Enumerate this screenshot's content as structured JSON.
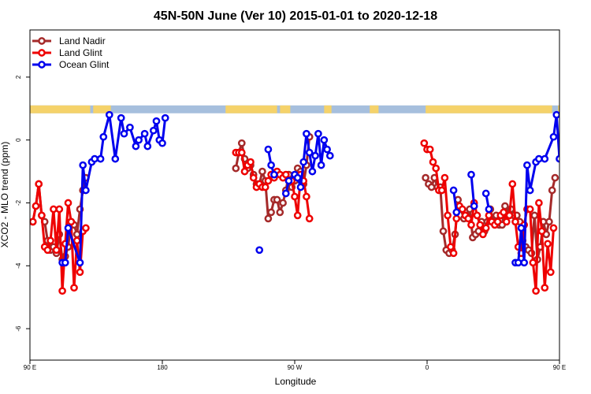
{
  "chart_data": {
    "type": "line",
    "title": "45N-50N June (Ver 10)   2015-01-01 to 2020-12-18",
    "xlabel": "Longitude",
    "ylabel": "XCO2 - MLO trend (ppm)",
    "xlim": [
      90,
      450
    ],
    "ylim": [
      -7,
      3.5
    ],
    "x_ticks": [
      {
        "value": 90,
        "label": "90 E"
      },
      {
        "value": 180,
        "label": "180"
      },
      {
        "value": 270,
        "label": "90 W"
      },
      {
        "value": 360,
        "label": "0"
      },
      {
        "value": 450,
        "label": "90 E"
      },
      {
        "value": 540,
        "label": "180"
      }
    ],
    "y_ticks": [
      {
        "value": 2,
        "label": "2"
      },
      {
        "value": 0,
        "label": "0"
      },
      {
        "value": -2,
        "label": "-2"
      },
      {
        "value": -4,
        "label": "-4"
      },
      {
        "value": -6,
        "label": "-6"
      }
    ],
    "grid": false,
    "legend": {
      "placement": "top-left"
    },
    "land_strip": {
      "y_range": [
        0.85,
        1.1
      ],
      "land_color": "#f5d26a",
      "ocean_color": "#a6bfdd",
      "land_segments": [
        [
          90,
          131
        ],
        [
          133,
          145
        ],
        [
          223,
          258
        ],
        [
          260,
          267
        ],
        [
          290,
          295
        ],
        [
          321,
          327
        ],
        [
          359,
          445
        ],
        [
          449,
          470
        ],
        [
          472,
          475
        ],
        [
          485,
          522
        ]
      ]
    },
    "series": [
      {
        "name": "Land Nadir",
        "color": "#a52a2a",
        "segments": [
          [
            [
              92,
              -2.6
            ],
            [
              94,
              -2.1
            ],
            [
              96,
              -1.4
            ],
            [
              98,
              -2.4
            ],
            [
              100,
              -2.6
            ],
            [
              102,
              -3.2
            ],
            [
              104,
              -3.5
            ],
            [
              106,
              -3.4
            ],
            [
              108,
              -3.6
            ],
            [
              110,
              -3.0
            ],
            [
              112,
              -3.8
            ],
            [
              114,
              -3.7
            ],
            [
              116,
              -3.4
            ],
            [
              118,
              -2.6
            ],
            [
              120,
              -2.7
            ],
            [
              122,
              -3.0
            ],
            [
              124,
              -2.2
            ],
            [
              126,
              -1.6
            ],
            [
              128,
              -1.2
            ]
          ],
          [
            [
              230,
              -0.9
            ],
            [
              232,
              -0.4
            ],
            [
              234,
              -0.1
            ],
            [
              236,
              -0.6
            ],
            [
              238,
              -0.9
            ],
            [
              240,
              -0.8
            ],
            [
              242,
              -1.1
            ],
            [
              244,
              -1.4
            ],
            [
              246,
              -1.4
            ],
            [
              248,
              -1.0
            ],
            [
              250,
              -1.3
            ],
            [
              252,
              -2.5
            ],
            [
              254,
              -2.3
            ],
            [
              256,
              -1.9
            ],
            [
              258,
              -1.9
            ],
            [
              260,
              -2.3
            ],
            [
              262,
              -2.0
            ],
            [
              264,
              -1.6
            ],
            [
              266,
              -1.1
            ],
            [
              268,
              -1.5
            ],
            [
              270,
              -1.3
            ],
            [
              272,
              -0.9
            ],
            [
              274,
              -1.0
            ],
            [
              276,
              -1.4
            ],
            [
              278,
              -0.8
            ],
            [
              280,
              0.1
            ]
          ],
          [
            [
              359,
              -1.2
            ],
            [
              361,
              -1.4
            ],
            [
              363,
              -1.5
            ],
            [
              365,
              -1.2
            ],
            [
              367,
              -1.5
            ],
            [
              369,
              -1.5
            ],
            [
              371,
              -2.9
            ],
            [
              373,
              -3.5
            ],
            [
              375,
              -3.6
            ],
            [
              377,
              -3.5
            ],
            [
              379,
              -3.0
            ],
            [
              381,
              -1.9
            ],
            [
              383,
              -2.2
            ],
            [
              385,
              -2.5
            ],
            [
              387,
              -2.4
            ],
            [
              389,
              -2.2
            ],
            [
              391,
              -3.1
            ],
            [
              393,
              -3.0
            ],
            [
              395,
              -2.9
            ],
            [
              397,
              -2.6
            ],
            [
              399,
              -2.9
            ],
            [
              401,
              -2.6
            ],
            [
              403,
              -2.2
            ],
            [
              405,
              -2.6
            ],
            [
              407,
              -2.4
            ],
            [
              409,
              -2.7
            ],
            [
              411,
              -2.7
            ],
            [
              413,
              -2.1
            ],
            [
              415,
              -2.4
            ],
            [
              417,
              -2.2
            ],
            [
              419,
              -2.4
            ],
            [
              421,
              -2.4
            ],
            [
              423,
              -2.6
            ],
            [
              425,
              -3.2
            ],
            [
              427,
              -3.4
            ],
            [
              429,
              -3.5
            ],
            [
              431,
              -3.6
            ],
            [
              433,
              -2.4
            ],
            [
              435,
              -3.8
            ],
            [
              437,
              -3.4
            ],
            [
              439,
              -2.6
            ],
            [
              441,
              -3.0
            ],
            [
              443,
              -2.6
            ],
            [
              445,
              -1.6
            ],
            [
              447,
              -1.2
            ]
          ]
        ]
      },
      {
        "name": "Land Glint",
        "color": "#ee0000",
        "segments": [
          [
            [
              92,
              -2.6
            ],
            [
              94,
              -2.1
            ],
            [
              96,
              -1.4
            ],
            [
              98,
              -2.4
            ],
            [
              100,
              -3.4
            ],
            [
              102,
              -3.5
            ],
            [
              104,
              -3.2
            ],
            [
              106,
              -2.2
            ],
            [
              108,
              -3.5
            ],
            [
              110,
              -2.2
            ],
            [
              112,
              -4.8
            ],
            [
              114,
              -3.3
            ],
            [
              116,
              -2.0
            ],
            [
              118,
              -2.6
            ],
            [
              120,
              -4.7
            ],
            [
              122,
              -3.2
            ],
            [
              124,
              -4.2
            ],
            [
              126,
              -2.9
            ],
            [
              128,
              -2.8
            ]
          ],
          [
            [
              230,
              -0.4
            ],
            [
              232,
              -0.4
            ],
            [
              234,
              -0.4
            ],
            [
              236,
              -1.0
            ],
            [
              238,
              -0.8
            ],
            [
              240,
              -0.7
            ],
            [
              242,
              -1.2
            ],
            [
              244,
              -1.5
            ],
            [
              246,
              -1.4
            ],
            [
              248,
              -1.5
            ],
            [
              250,
              -1.5
            ],
            [
              252,
              -1.3
            ],
            [
              254,
              -1.1
            ],
            [
              256,
              -1.2
            ],
            [
              258,
              -1.0
            ],
            [
              260,
              -1.1
            ],
            [
              262,
              -1.2
            ],
            [
              264,
              -1.1
            ],
            [
              266,
              -1.3
            ],
            [
              268,
              -1.3
            ],
            [
              270,
              -1.8
            ],
            [
              272,
              -2.4
            ],
            [
              274,
              -1.1
            ],
            [
              276,
              -1.3
            ],
            [
              278,
              -1.8
            ],
            [
              280,
              -2.5
            ]
          ],
          [
            [
              358,
              -0.1
            ],
            [
              360,
              -0.3
            ],
            [
              362,
              -0.3
            ],
            [
              364,
              -0.7
            ],
            [
              366,
              -0.9
            ],
            [
              368,
              -1.6
            ],
            [
              370,
              -1.6
            ],
            [
              372,
              -1.2
            ],
            [
              374,
              -2.4
            ],
            [
              376,
              -3.4
            ],
            [
              378,
              -3.6
            ],
            [
              380,
              -2.5
            ],
            [
              382,
              -2.1
            ],
            [
              384,
              -2.2
            ],
            [
              386,
              -2.4
            ],
            [
              388,
              -2.5
            ],
            [
              390,
              -2.7
            ],
            [
              392,
              -2.0
            ],
            [
              394,
              -2.4
            ],
            [
              396,
              -2.7
            ],
            [
              398,
              -3.0
            ],
            [
              400,
              -2.8
            ],
            [
              402,
              -2.4
            ],
            [
              404,
              -2.6
            ],
            [
              406,
              -2.7
            ],
            [
              408,
              -2.6
            ],
            [
              410,
              -2.4
            ],
            [
              412,
              -2.3
            ],
            [
              414,
              -2.6
            ],
            [
              416,
              -2.4
            ],
            [
              418,
              -1.4
            ],
            [
              420,
              -2.6
            ],
            [
              422,
              -3.4
            ],
            [
              424,
              -3.6
            ],
            [
              426,
              -2.7
            ],
            [
              428,
              -2.2
            ],
            [
              430,
              -2.2
            ],
            [
              432,
              -3.9
            ],
            [
              434,
              -4.8
            ],
            [
              436,
              -2.0
            ],
            [
              438,
              -2.9
            ],
            [
              440,
              -4.7
            ],
            [
              442,
              -3.3
            ],
            [
              444,
              -4.2
            ],
            [
              446,
              -2.8
            ]
          ]
        ]
      },
      {
        "name": "Ocean Glint",
        "color": "#0000ee",
        "segments": [
          [
            [
              112,
              -3.9
            ],
            [
              114,
              -3.9
            ],
            [
              116,
              -2.8
            ],
            [
              124,
              -3.9
            ],
            [
              126,
              -0.8
            ],
            [
              128,
              -1.6
            ],
            [
              132,
              -0.7
            ],
            [
              134,
              -0.6
            ],
            [
              138,
              -0.6
            ],
            [
              140,
              0.1
            ],
            [
              144,
              0.8
            ],
            [
              148,
              -0.6
            ],
            [
              152,
              0.7
            ],
            [
              154,
              0.2
            ],
            [
              158,
              0.4
            ],
            [
              162,
              -0.2
            ],
            [
              164,
              0.0
            ],
            [
              168,
              0.2
            ],
            [
              170,
              -0.2
            ],
            [
              174,
              0.3
            ],
            [
              176,
              0.6
            ],
            [
              178,
              0.0
            ],
            [
              180,
              -0.1
            ],
            [
              182,
              0.7
            ]
          ],
          [
            [
              246,
              -3.5
            ]
          ],
          [
            [
              252,
              -0.3
            ],
            [
              254,
              -0.8
            ],
            [
              256,
              -1.1
            ]
          ],
          [
            [
              264,
              -1.7
            ],
            [
              266,
              -1.3
            ],
            [
              270,
              -1.1
            ],
            [
              272,
              -1.2
            ],
            [
              274,
              -1.5
            ],
            [
              276,
              -0.7
            ],
            [
              278,
              0.2
            ],
            [
              280,
              -0.4
            ],
            [
              282,
              -1.0
            ],
            [
              284,
              -0.5
            ],
            [
              286,
              0.2
            ],
            [
              288,
              -0.8
            ],
            [
              290,
              0.0
            ],
            [
              292,
              -0.3
            ],
            [
              294,
              -0.5
            ]
          ],
          [
            [
              378,
              -1.6
            ],
            [
              380,
              -2.3
            ]
          ],
          [
            [
              390,
              -1.1
            ],
            [
              392,
              -2.1
            ]
          ],
          [
            [
              400,
              -1.7
            ],
            [
              402,
              -2.2
            ]
          ],
          [
            [
              420,
              -3.9
            ],
            [
              422,
              -3.9
            ],
            [
              424,
              -2.8
            ],
            [
              426,
              -3.9
            ],
            [
              428,
              -0.8
            ],
            [
              430,
              -1.6
            ],
            [
              434,
              -0.7
            ],
            [
              436,
              -0.6
            ],
            [
              440,
              -0.6
            ],
            [
              446,
              0.1
            ],
            [
              448,
              0.8
            ],
            [
              450,
              -0.6
            ]
          ]
        ]
      }
    ]
  }
}
